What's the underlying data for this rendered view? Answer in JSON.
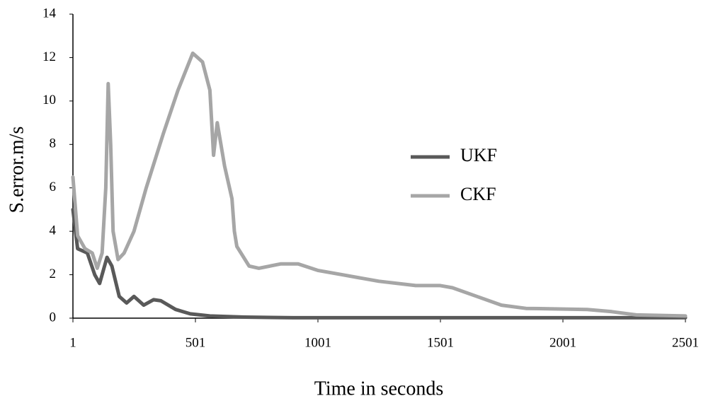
{
  "chart_data": {
    "type": "line",
    "xlabel": "Time in seconds",
    "ylabel": "S.error.m/s",
    "xlim": [
      1,
      2501
    ],
    "xticks": [
      1,
      501,
      1001,
      1501,
      2001,
      2501
    ],
    "ylim": [
      0,
      14
    ],
    "yticks": [
      0,
      2,
      4,
      6,
      8,
      10,
      12,
      14
    ],
    "grid": false,
    "series": [
      {
        "name": "UKF",
        "color": "#595959",
        "x": [
          1,
          20,
          60,
          90,
          110,
          140,
          160,
          190,
          220,
          250,
          290,
          330,
          360,
          420,
          480,
          560,
          700,
          900,
          1500,
          2501
        ],
        "values": [
          5,
          3.2,
          3,
          2,
          1.6,
          2.8,
          2.4,
          1,
          0.7,
          1,
          0.6,
          0.85,
          0.8,
          0.4,
          0.2,
          0.1,
          0.05,
          0.02,
          0.02,
          0.02
        ]
      },
      {
        "name": "CKF",
        "color": "#a6a6a6",
        "x": [
          1,
          20,
          50,
          80,
          100,
          120,
          135,
          145,
          155,
          165,
          185,
          210,
          250,
          300,
          370,
          430,
          490,
          530,
          560,
          575,
          590,
          620,
          650,
          660,
          670,
          720,
          760,
          850,
          920,
          1000,
          1100,
          1250,
          1400,
          1500,
          1550,
          1650,
          1750,
          1850,
          2100,
          2200,
          2300,
          2501
        ],
        "values": [
          6.5,
          3.8,
          3.2,
          3,
          2.3,
          3,
          6,
          10.8,
          8,
          4,
          2.7,
          3,
          4,
          6,
          8.5,
          10.5,
          12.2,
          11.8,
          10.5,
          7.5,
          9,
          7,
          5.5,
          4,
          3.3,
          2.4,
          2.3,
          2.5,
          2.5,
          2.2,
          2,
          1.7,
          1.5,
          1.5,
          1.4,
          1,
          0.6,
          0.45,
          0.4,
          0.3,
          0.15,
          0.1
        ]
      }
    ]
  }
}
